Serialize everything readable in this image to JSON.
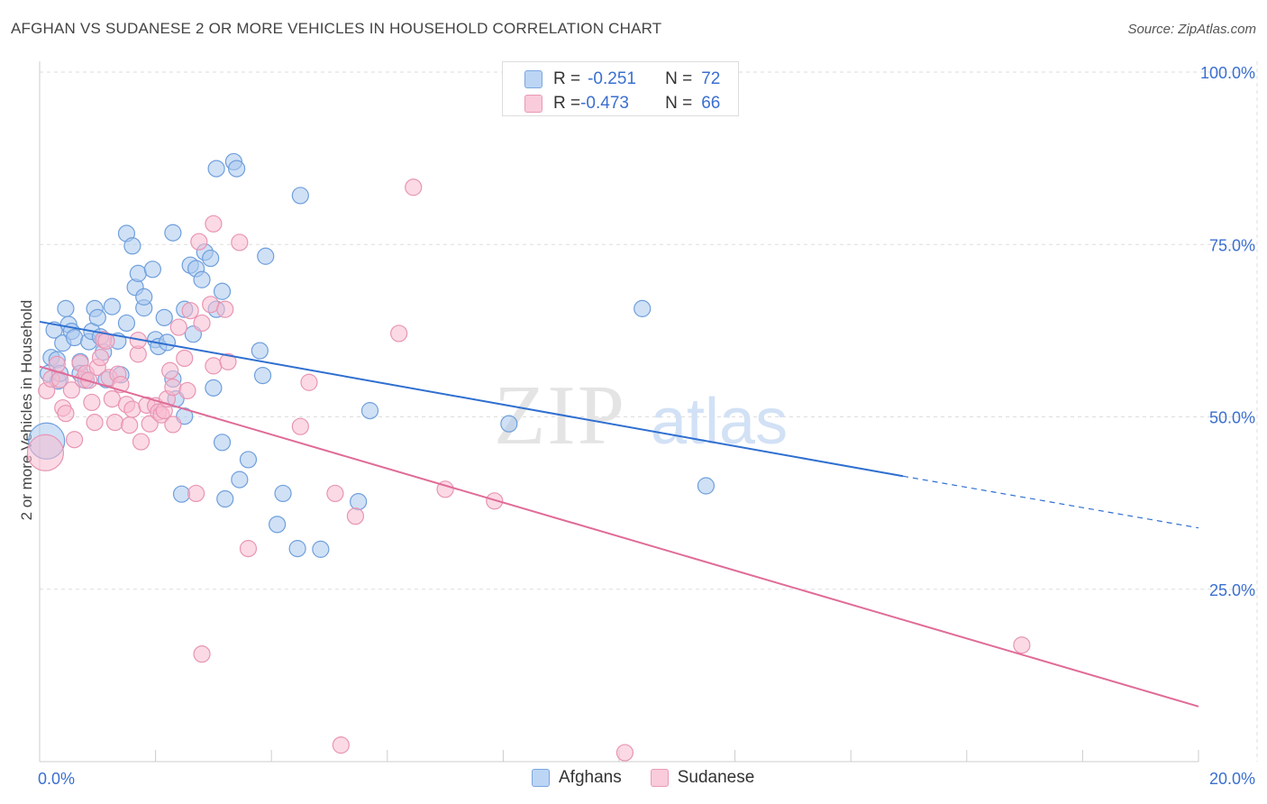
{
  "title": "AFGHAN VS SUDANESE 2 OR MORE VEHICLES IN HOUSEHOLD CORRELATION CHART",
  "source": "Source: ZipAtlas.com",
  "watermark": {
    "zip": "ZIP",
    "atlas": "atlas"
  },
  "legend_top": [
    {
      "r_label": "R = ",
      "r_value": "-0.251",
      "n_label": "N = ",
      "n_value": "72"
    },
    {
      "r_label": "R = ",
      "r_value": "-0.473",
      "n_label": "N = ",
      "n_value": "66"
    }
  ],
  "legend_bottom": [
    {
      "label": "Afghans"
    },
    {
      "label": "Sudanese"
    }
  ],
  "colors": {
    "afghans_fill": "#a9c8ef",
    "afghans_stroke": "#6f9fdc",
    "afghans_line": "#2f6fd0",
    "sudanese_fill": "#f7bcd0",
    "sudanese_stroke": "#e895b3",
    "sudanese_line": "#e06b97",
    "tick_label": "#3b6fd0",
    "grid": "#dddddd"
  },
  "chart_data": {
    "type": "scatter",
    "title": "AFGHAN VS SUDANESE 2 OR MORE VEHICLES IN HOUSEHOLD CORRELATION CHART",
    "ylabel": "2 or more Vehicles in Household",
    "xlabel": "",
    "xlim": [
      0,
      20
    ],
    "ylim": [
      0,
      105
    ],
    "x_tick_labels": [
      {
        "value": 0,
        "label": "0.0%"
      },
      {
        "value": 20,
        "label": "20.0%"
      }
    ],
    "y_tick_labels": [
      {
        "value": 100,
        "label": "100.0%"
      },
      {
        "value": 75,
        "label": "75.0%"
      },
      {
        "value": 50,
        "label": "50.0%"
      },
      {
        "value": 25,
        "label": "25.0%"
      }
    ],
    "grid": true,
    "series": [
      {
        "name": "Afghans",
        "trend": {
          "x0": 0,
          "y0": 63.8,
          "x1": 14.9,
          "y1": 41.4,
          "dash_to_x": 20,
          "dash_to_y": 33.9
        },
        "points": [
          [
            0.12,
            46.5
          ],
          [
            0.15,
            56.3
          ],
          [
            0.2,
            58.6
          ],
          [
            0.25,
            62.6
          ],
          [
            0.3,
            58.3
          ],
          [
            0.32,
            55.2
          ],
          [
            0.35,
            56.3
          ],
          [
            0.4,
            60.7
          ],
          [
            0.45,
            65.7
          ],
          [
            0.5,
            63.4
          ],
          [
            0.55,
            62.4
          ],
          [
            0.6,
            61.5
          ],
          [
            0.7,
            58.0
          ],
          [
            0.7,
            56.3
          ],
          [
            0.8,
            55.3
          ],
          [
            0.85,
            60.9
          ],
          [
            0.9,
            62.4
          ],
          [
            0.95,
            65.7
          ],
          [
            1.0,
            64.4
          ],
          [
            1.05,
            61.6
          ],
          [
            1.1,
            59.4
          ],
          [
            1.15,
            55.4
          ],
          [
            1.25,
            66.0
          ],
          [
            1.35,
            61.0
          ],
          [
            1.4,
            56.1
          ],
          [
            1.5,
            63.6
          ],
          [
            1.5,
            76.6
          ],
          [
            1.6,
            74.8
          ],
          [
            1.65,
            68.8
          ],
          [
            1.7,
            70.8
          ],
          [
            1.8,
            65.8
          ],
          [
            1.8,
            67.4
          ],
          [
            1.95,
            71.4
          ],
          [
            2.0,
            61.2
          ],
          [
            2.05,
            60.2
          ],
          [
            2.15,
            64.4
          ],
          [
            2.2,
            60.8
          ],
          [
            2.3,
            76.7
          ],
          [
            2.3,
            55.5
          ],
          [
            2.35,
            52.6
          ],
          [
            2.45,
            38.8
          ],
          [
            2.5,
            65.6
          ],
          [
            2.5,
            50.1
          ],
          [
            2.6,
            72.0
          ],
          [
            2.65,
            62.0
          ],
          [
            2.7,
            71.5
          ],
          [
            2.8,
            69.9
          ],
          [
            2.85,
            73.9
          ],
          [
            2.95,
            73.0
          ],
          [
            3.0,
            54.2
          ],
          [
            3.05,
            65.6
          ],
          [
            3.05,
            86.0
          ],
          [
            3.15,
            46.3
          ],
          [
            3.15,
            68.2
          ],
          [
            3.2,
            38.1
          ],
          [
            3.35,
            87.0
          ],
          [
            3.4,
            86.0
          ],
          [
            3.45,
            40.9
          ],
          [
            3.6,
            43.8
          ],
          [
            3.8,
            59.6
          ],
          [
            3.85,
            56.0
          ],
          [
            3.9,
            73.3
          ],
          [
            4.1,
            34.4
          ],
          [
            4.2,
            38.9
          ],
          [
            4.45,
            30.9
          ],
          [
            4.5,
            82.1
          ],
          [
            4.85,
            30.8
          ],
          [
            5.5,
            37.7
          ],
          [
            5.7,
            50.9
          ],
          [
            8.1,
            49.0
          ],
          [
            10.4,
            65.7
          ],
          [
            11.5,
            40.0
          ]
        ]
      },
      {
        "name": "Sudanese",
        "trend": {
          "x0": 0,
          "y0": 57.3,
          "x1": 20,
          "y1": 8.0
        },
        "points": [
          [
            0.1,
            44.8
          ],
          [
            0.12,
            53.8
          ],
          [
            0.2,
            55.5
          ],
          [
            0.3,
            57.6
          ],
          [
            0.35,
            55.4
          ],
          [
            0.4,
            51.3
          ],
          [
            0.45,
            50.5
          ],
          [
            0.55,
            53.9
          ],
          [
            0.6,
            46.7
          ],
          [
            0.7,
            57.8
          ],
          [
            0.75,
            55.4
          ],
          [
            0.8,
            56.3
          ],
          [
            0.85,
            55.3
          ],
          [
            0.9,
            52.1
          ],
          [
            0.95,
            49.2
          ],
          [
            1.0,
            57.2
          ],
          [
            1.05,
            58.6
          ],
          [
            1.1,
            61.2
          ],
          [
            1.15,
            61.0
          ],
          [
            1.2,
            55.7
          ],
          [
            1.25,
            52.6
          ],
          [
            1.3,
            49.2
          ],
          [
            1.35,
            56.2
          ],
          [
            1.4,
            54.7
          ],
          [
            1.5,
            51.8
          ],
          [
            1.55,
            48.8
          ],
          [
            1.6,
            51.1
          ],
          [
            1.7,
            59.1
          ],
          [
            1.7,
            61.1
          ],
          [
            1.75,
            46.4
          ],
          [
            1.85,
            51.7
          ],
          [
            1.9,
            49.0
          ],
          [
            2.0,
            51.6
          ],
          [
            2.05,
            50.7
          ],
          [
            2.1,
            50.3
          ],
          [
            2.15,
            50.9
          ],
          [
            2.2,
            52.6
          ],
          [
            2.25,
            56.7
          ],
          [
            2.3,
            54.3
          ],
          [
            2.3,
            48.9
          ],
          [
            2.4,
            63.0
          ],
          [
            2.5,
            58.5
          ],
          [
            2.55,
            53.8
          ],
          [
            2.6,
            65.4
          ],
          [
            2.7,
            38.9
          ],
          [
            2.75,
            75.4
          ],
          [
            2.8,
            63.6
          ],
          [
            2.8,
            15.6
          ],
          [
            2.95,
            66.3
          ],
          [
            3.0,
            57.4
          ],
          [
            3.0,
            78.0
          ],
          [
            3.2,
            65.6
          ],
          [
            3.25,
            58.0
          ],
          [
            3.45,
            75.3
          ],
          [
            3.6,
            30.9
          ],
          [
            4.5,
            48.6
          ],
          [
            4.65,
            55.0
          ],
          [
            5.1,
            38.9
          ],
          [
            5.2,
            2.4
          ],
          [
            5.45,
            35.6
          ],
          [
            6.2,
            62.1
          ],
          [
            6.45,
            83.3
          ],
          [
            7.0,
            39.5
          ],
          [
            7.85,
            37.8
          ],
          [
            10.1,
            1.3
          ],
          [
            16.95,
            16.9
          ]
        ]
      }
    ]
  }
}
